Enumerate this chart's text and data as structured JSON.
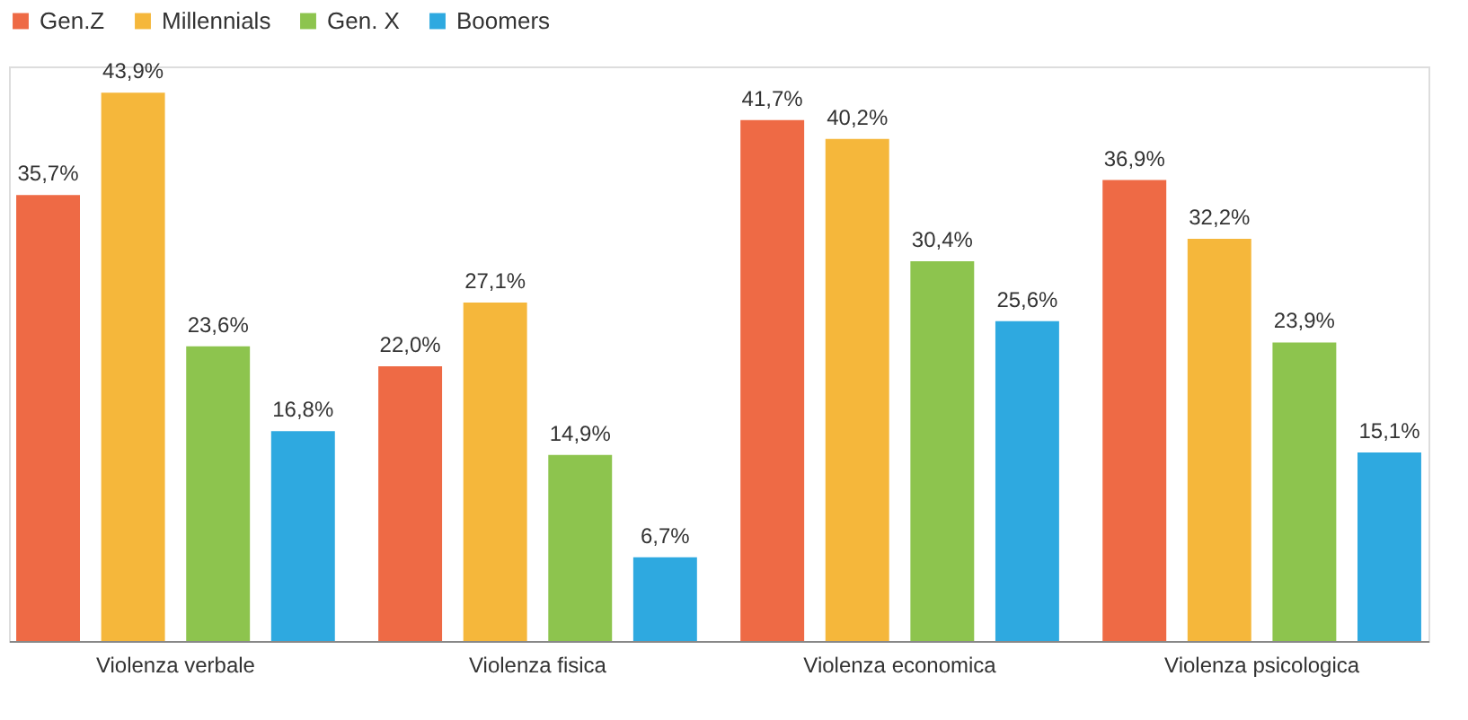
{
  "chart_data": {
    "type": "bar",
    "categories": [
      "Violenza verbale",
      "Violenza fisica",
      "Violenza economica",
      "Violenza psicologica"
    ],
    "series": [
      {
        "name": "Gen.Z",
        "color": "#ee6a45",
        "values": [
          35.7,
          22.0,
          41.7,
          36.9
        ],
        "value_labels": [
          "35,7%",
          "22,0%",
          "41,7%",
          "36,9%"
        ]
      },
      {
        "name": "Millennials",
        "color": "#f5b73b",
        "values": [
          43.9,
          27.1,
          40.2,
          32.2
        ],
        "value_labels": [
          "43,9%",
          "27,1%",
          "40,2%",
          "32,2%"
        ]
      },
      {
        "name": "Gen. X",
        "color": "#8dc44e",
        "values": [
          23.6,
          14.9,
          30.4,
          23.9
        ],
        "value_labels": [
          "23,6%",
          "14,9%",
          "30,4%",
          "23,9%"
        ]
      },
      {
        "name": "Boomers",
        "color": "#2ea9e0",
        "values": [
          16.8,
          6.7,
          25.6,
          15.1
        ],
        "value_labels": [
          "16,8%",
          "6,7%",
          "25,6%",
          "15,1%"
        ]
      }
    ],
    "ylim": [
      0,
      46
    ],
    "grid": false,
    "legend": "top",
    "tick_labels": "x"
  }
}
